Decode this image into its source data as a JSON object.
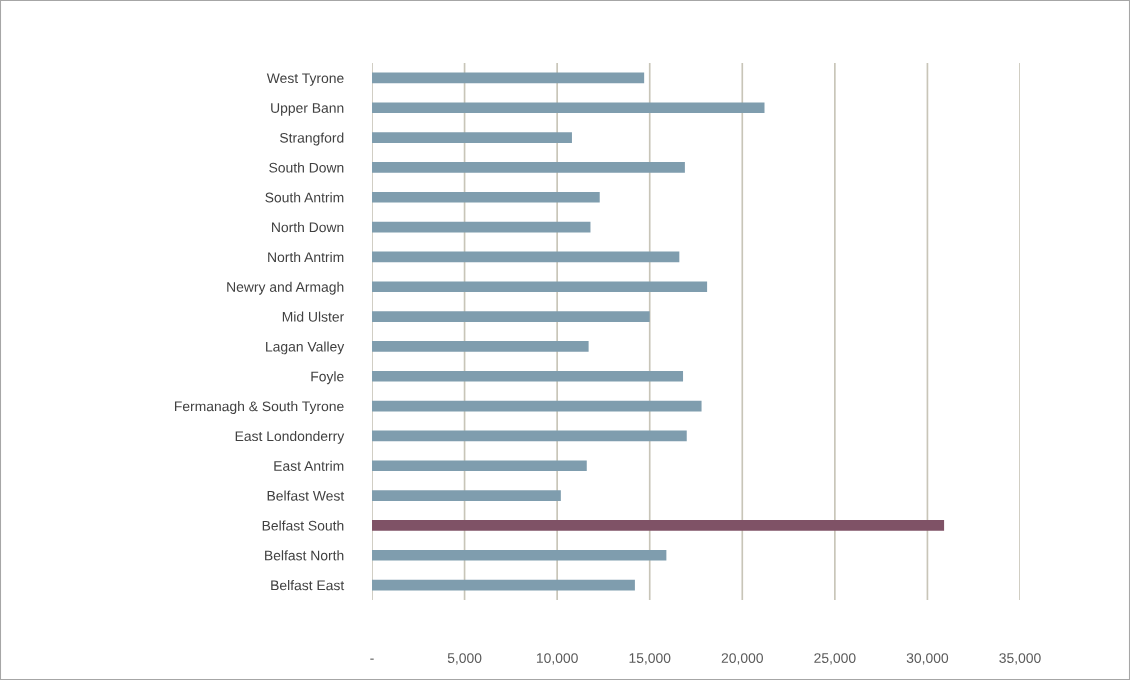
{
  "chart_data": {
    "type": "bar",
    "orientation": "horizontal",
    "categories": [
      "West Tyrone",
      "Upper Bann",
      "Strangford",
      "South Down",
      "South Antrim",
      "North Down",
      "North Antrim",
      "Newry and Armagh",
      "Mid Ulster",
      "Lagan Valley",
      "Foyle",
      "Fermanagh & South Tyrone",
      "East Londonderry",
      "East Antrim",
      "Belfast West",
      "Belfast South",
      "Belfast North",
      "Belfast East"
    ],
    "values": [
      14700,
      21200,
      10800,
      16900,
      12300,
      11800,
      16600,
      18100,
      15000,
      11700,
      16800,
      17800,
      17000,
      11600,
      10200,
      30900,
      15900,
      14200
    ],
    "colors": [
      "#7f9dae",
      "#7f9dae",
      "#7f9dae",
      "#7f9dae",
      "#7f9dae",
      "#7f9dae",
      "#7f9dae",
      "#7f9dae",
      "#7f9dae",
      "#7f9dae",
      "#7f9dae",
      "#7f9dae",
      "#7f9dae",
      "#7f9dae",
      "#7f9dae",
      "#7f5266",
      "#7f9dae",
      "#7f9dae"
    ],
    "xlim": [
      0,
      35000
    ],
    "xticks": [
      {
        "value": 0,
        "label": "-"
      },
      {
        "value": 5000,
        "label": "5,000"
      },
      {
        "value": 10000,
        "label": "10,000"
      },
      {
        "value": 15000,
        "label": "15,000"
      },
      {
        "value": 20000,
        "label": "20,000"
      },
      {
        "value": 25000,
        "label": "25,000"
      },
      {
        "value": 30000,
        "label": "30,000"
      },
      {
        "value": 35000,
        "label": "35,000"
      }
    ],
    "grid": "x"
  }
}
